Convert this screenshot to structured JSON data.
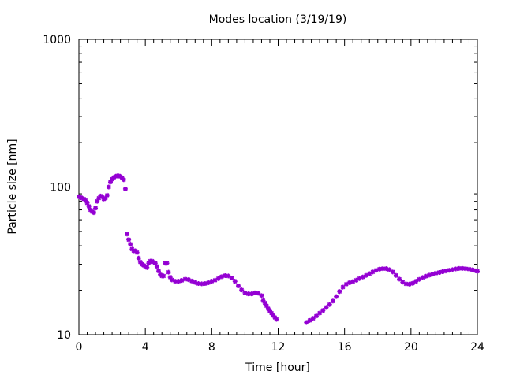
{
  "chart_data": {
    "type": "scatter",
    "title": "Modes location (3/19/19)",
    "xlabel": "Time [hour]",
    "ylabel": "Particle size [nm]",
    "xlim": [
      0,
      24
    ],
    "ylim": [
      10,
      1000
    ],
    "y_scale": "log",
    "x_ticks": [
      "0",
      "4",
      "8",
      "12",
      "16",
      "20",
      "24"
    ],
    "y_ticks": [
      "10",
      "100",
      "1000"
    ],
    "grid": false,
    "legend": "none",
    "marker_color": "#9400d3",
    "segments": [
      {
        "points": [
          [
            0.0,
            86
          ],
          [
            0.1,
            85
          ],
          [
            0.2,
            84
          ],
          [
            0.3,
            83
          ],
          [
            0.4,
            81
          ],
          [
            0.5,
            78
          ],
          [
            0.6,
            74
          ],
          [
            0.7,
            70
          ],
          [
            0.8,
            68
          ],
          [
            0.9,
            67
          ],
          [
            1.0,
            72
          ],
          [
            1.1,
            80
          ],
          [
            1.2,
            84
          ],
          [
            1.3,
            87
          ],
          [
            1.4,
            86
          ],
          [
            1.5,
            83
          ],
          [
            1.6,
            84
          ],
          [
            1.7,
            88
          ],
          [
            1.8,
            100
          ],
          [
            1.9,
            108
          ],
          [
            2.0,
            113
          ],
          [
            2.1,
            116
          ],
          [
            2.2,
            118
          ],
          [
            2.3,
            119
          ],
          [
            2.4,
            119
          ],
          [
            2.5,
            118
          ],
          [
            2.6,
            115
          ],
          [
            2.7,
            112
          ],
          [
            2.8,
            97
          ]
        ]
      },
      {
        "points": [
          [
            2.9,
            48
          ],
          [
            3.0,
            44
          ],
          [
            3.1,
            41
          ],
          [
            3.2,
            38
          ],
          [
            3.3,
            37
          ],
          [
            3.4,
            37
          ],
          [
            3.5,
            36
          ],
          [
            3.6,
            33
          ],
          [
            3.7,
            31
          ],
          [
            3.8,
            30
          ],
          [
            3.9,
            29.5
          ],
          [
            4.0,
            29
          ],
          [
            4.1,
            28.5
          ],
          [
            4.2,
            30.5
          ],
          [
            4.3,
            31.5
          ],
          [
            4.4,
            31.5
          ],
          [
            4.5,
            31
          ],
          [
            4.6,
            30.5
          ],
          [
            4.7,
            29
          ],
          [
            4.8,
            27
          ],
          [
            4.9,
            25.5
          ],
          [
            5.0,
            25
          ],
          [
            5.1,
            25
          ],
          [
            5.2,
            30.5
          ],
          [
            5.3,
            30.5
          ],
          [
            5.4,
            26.5
          ],
          [
            5.5,
            24.5
          ],
          [
            5.6,
            23.5
          ],
          [
            5.8,
            23
          ],
          [
            6.0,
            23
          ],
          [
            6.2,
            23.3
          ],
          [
            6.4,
            23.8
          ],
          [
            6.6,
            23.6
          ],
          [
            6.8,
            23.1
          ],
          [
            7.0,
            22.6
          ],
          [
            7.2,
            22.2
          ],
          [
            7.4,
            22.1
          ],
          [
            7.6,
            22.2
          ],
          [
            7.8,
            22.5
          ],
          [
            8.0,
            23
          ],
          [
            8.2,
            23.4
          ],
          [
            8.4,
            24
          ],
          [
            8.6,
            24.7
          ],
          [
            8.8,
            25.1
          ],
          [
            9.0,
            25
          ],
          [
            9.2,
            24.2
          ],
          [
            9.4,
            23
          ],
          [
            9.6,
            21.4
          ],
          [
            9.8,
            20.1
          ],
          [
            10.0,
            19.2
          ],
          [
            10.2,
            18.9
          ],
          [
            10.4,
            18.9
          ],
          [
            10.6,
            19.2
          ],
          [
            10.8,
            19.1
          ],
          [
            11.0,
            18.4
          ],
          [
            11.1,
            17
          ],
          [
            11.2,
            16.4
          ],
          [
            11.3,
            15.7
          ],
          [
            11.4,
            15
          ],
          [
            11.5,
            14.5
          ],
          [
            11.6,
            14
          ],
          [
            11.7,
            13.5
          ],
          [
            11.8,
            13.1
          ],
          [
            11.9,
            12.7
          ]
        ]
      },
      {
        "points": [
          [
            13.7,
            12.1
          ],
          [
            13.9,
            12.5
          ],
          [
            14.1,
            12.9
          ],
          [
            14.3,
            13.4
          ],
          [
            14.5,
            14
          ],
          [
            14.7,
            14.6
          ],
          [
            14.9,
            15.3
          ],
          [
            15.1,
            16
          ],
          [
            15.3,
            16.9
          ],
          [
            15.5,
            18.1
          ],
          [
            15.7,
            19.6
          ],
          [
            15.9,
            21
          ],
          [
            16.1,
            22
          ],
          [
            16.3,
            22.5
          ],
          [
            16.5,
            22.9
          ],
          [
            16.7,
            23.4
          ],
          [
            16.9,
            24
          ],
          [
            17.1,
            24.6
          ],
          [
            17.3,
            25.2
          ],
          [
            17.5,
            25.9
          ],
          [
            17.7,
            26.6
          ],
          [
            17.9,
            27.3
          ],
          [
            18.1,
            27.8
          ],
          [
            18.3,
            28
          ],
          [
            18.5,
            28
          ],
          [
            18.7,
            27.6
          ],
          [
            18.9,
            26.6
          ],
          [
            19.1,
            25.2
          ],
          [
            19.3,
            23.8
          ],
          [
            19.5,
            22.7
          ],
          [
            19.7,
            22.1
          ],
          [
            19.9,
            22
          ],
          [
            20.1,
            22.3
          ],
          [
            20.3,
            23
          ],
          [
            20.5,
            23.7
          ],
          [
            20.7,
            24.4
          ],
          [
            20.9,
            24.9
          ],
          [
            21.1,
            25.3
          ],
          [
            21.3,
            25.7
          ],
          [
            21.5,
            26.1
          ],
          [
            21.7,
            26.4
          ],
          [
            21.9,
            26.7
          ],
          [
            22.1,
            27
          ],
          [
            22.3,
            27.3
          ],
          [
            22.5,
            27.6
          ],
          [
            22.7,
            27.9
          ],
          [
            22.9,
            28.1
          ],
          [
            23.1,
            28.1
          ],
          [
            23.3,
            28
          ],
          [
            23.5,
            27.8
          ],
          [
            23.7,
            27.5
          ],
          [
            23.9,
            27.1
          ],
          [
            24.0,
            26.9
          ]
        ]
      }
    ]
  }
}
